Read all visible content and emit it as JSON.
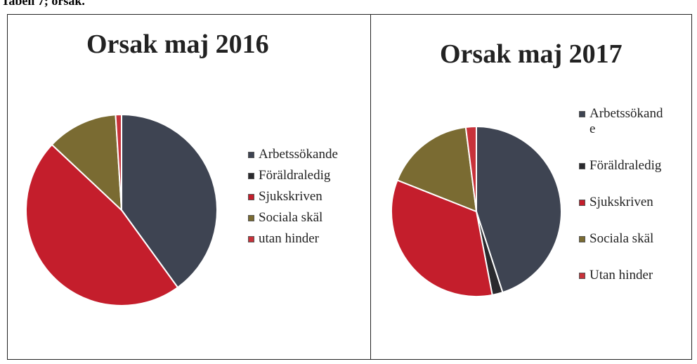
{
  "caption": "Tabell 7; orsak.",
  "chart_data": [
    {
      "type": "pie",
      "title": "Orsak maj 2016",
      "categories": [
        "Arbetssökande",
        "Föräldraledig",
        "Sjukskriven",
        "Sociala skäl",
        "utan hinder"
      ],
      "values": [
        40,
        0,
        47,
        12,
        1
      ],
      "colors": [
        "#3e4452",
        "#2a2a2e",
        "#c41e2c",
        "#7a6b32",
        "#c8323a"
      ]
    },
    {
      "type": "pie",
      "title": "Orsak maj 2017",
      "categories": [
        "Arbetssökande",
        "Föräldraledig",
        "Sjukskriven",
        "Sociala skäl",
        "Utan hinder"
      ],
      "values": [
        45,
        2,
        34,
        17,
        2
      ],
      "colors": [
        "#3e4452",
        "#2a2a2e",
        "#c41e2c",
        "#7a6b32",
        "#c8323a"
      ]
    }
  ]
}
